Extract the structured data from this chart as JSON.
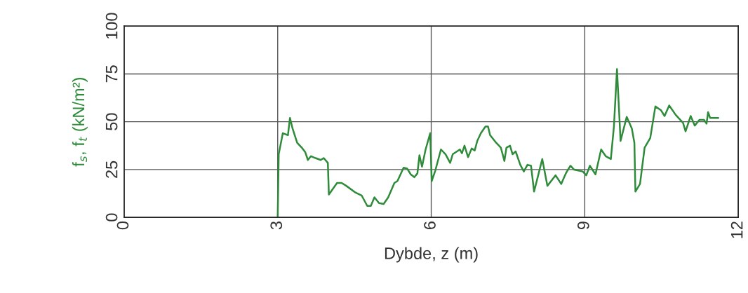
{
  "chart_data": {
    "type": "line",
    "xlabel": "Dybde, z (m)",
    "ylabel": "f$_{s}$, f$_{t}$ (kN/m²)",
    "xlim": [
      0,
      12
    ],
    "xticks": [
      0,
      3,
      6,
      9,
      12
    ],
    "ylim": [
      0,
      100
    ],
    "yticks": [
      0,
      25,
      50,
      75,
      100
    ],
    "grid": true,
    "marker": "none",
    "line_style": "solid",
    "series": [
      {
        "color": "#2e8b3a",
        "x": [
          3.0,
          3.02,
          3.1,
          3.2,
          3.24,
          3.29,
          3.38,
          3.47,
          3.54,
          3.59,
          3.65,
          3.74,
          3.84,
          3.9,
          3.98,
          4.0,
          4.16,
          4.25,
          4.34,
          4.52,
          4.64,
          4.75,
          4.82,
          4.89,
          4.98,
          5.07,
          5.16,
          5.28,
          5.34,
          5.46,
          5.53,
          5.6,
          5.67,
          5.73,
          5.77,
          5.82,
          5.89,
          5.98,
          6.01,
          6.08,
          6.19,
          6.28,
          6.37,
          6.42,
          6.56,
          6.6,
          6.65,
          6.72,
          6.79,
          6.85,
          6.9,
          6.97,
          7.06,
          7.11,
          7.15,
          7.27,
          7.36,
          7.43,
          7.47,
          7.54,
          7.59,
          7.65,
          7.74,
          7.81,
          7.88,
          7.95,
          8.01,
          8.09,
          8.17,
          8.27,
          8.43,
          8.54,
          8.63,
          8.72,
          8.79,
          8.96,
          9.03,
          9.1,
          9.21,
          9.32,
          9.41,
          9.51,
          9.57,
          9.63,
          9.7,
          9.82,
          9.92,
          9.97,
          9.99,
          10.08,
          10.17,
          10.28,
          10.38,
          10.49,
          10.56,
          10.65,
          10.78,
          10.92,
          10.97,
          11.07,
          11.15,
          11.24,
          11.33,
          11.38,
          11.41,
          11.45,
          11.61
        ],
        "values": [
          0,
          33,
          44,
          43,
          52,
          46.5,
          39,
          36.5,
          34,
          30,
          32,
          31,
          30,
          31,
          28.5,
          12,
          18,
          18,
          16.5,
          13,
          11.5,
          6,
          6,
          10.5,
          7.5,
          7,
          10.5,
          18,
          19,
          26,
          25.5,
          22.5,
          21,
          23,
          32.5,
          26.5,
          35.5,
          44,
          19,
          24.5,
          35.5,
          33,
          28.5,
          33,
          35.5,
          33.5,
          37.5,
          31.5,
          36,
          35,
          40,
          44,
          47.5,
          47.5,
          43,
          39,
          36.5,
          29.5,
          36.5,
          37.5,
          33,
          34.5,
          27.5,
          24,
          27.5,
          27,
          13.5,
          22,
          30.5,
          16.5,
          22,
          17.5,
          23,
          27,
          25,
          24,
          22,
          27,
          22.5,
          35.5,
          32,
          30.5,
          47.5,
          77.5,
          40,
          52.5,
          46.5,
          39,
          13.5,
          17.5,
          36.5,
          41.5,
          58,
          56,
          53,
          58.5,
          53.5,
          49.5,
          45,
          53,
          48,
          51,
          51,
          49,
          55,
          52,
          52
        ]
      }
    ]
  }
}
